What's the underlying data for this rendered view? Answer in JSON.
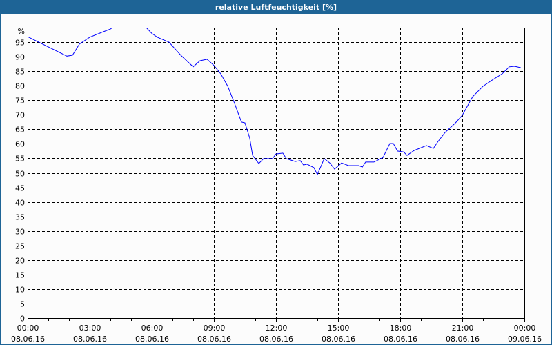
{
  "chart_data": {
    "type": "line",
    "title": "relative Luftfeuchtigkeit [%]",
    "ylabel": "%",
    "xlabel": "",
    "ylim": [
      0,
      100
    ],
    "xlim_hours": [
      0,
      24
    ],
    "grid": true,
    "y_ticks": [
      "0",
      "5",
      "10",
      "15",
      "20",
      "25",
      "30",
      "35",
      "40",
      "45",
      "50",
      "55",
      "60",
      "65",
      "70",
      "75",
      "80",
      "85",
      "90",
      "95"
    ],
    "x_ticks": [
      {
        "time": "00:00",
        "date": "08.06.16"
      },
      {
        "time": "03:00",
        "date": "08.06.16"
      },
      {
        "time": "06:00",
        "date": "08.06.16"
      },
      {
        "time": "09:00",
        "date": "08.06.16"
      },
      {
        "time": "12:00",
        "date": "08.06.16"
      },
      {
        "time": "15:00",
        "date": "08.06.16"
      },
      {
        "time": "18:00",
        "date": "08.06.16"
      },
      {
        "time": "21:00",
        "date": "08.06.16"
      },
      {
        "time": "00:00",
        "date": "09.06.16"
      }
    ],
    "series": [
      {
        "name": "relative Luftfeuchtigkeit",
        "color": "#0000ff",
        "x_hours": [
          0,
          1.9,
          2.17,
          2.5,
          3,
          3.67,
          4,
          4.2,
          5.6,
          6,
          6.27,
          6.83,
          7.4,
          8,
          8.33,
          8.67,
          9,
          9.33,
          9.67,
          10,
          10.33,
          10.5,
          10.73,
          10.87,
          11.17,
          11.4,
          11.83,
          12,
          12.33,
          12.5,
          12.93,
          13.17,
          13.33,
          13.5,
          13.83,
          14,
          14.33,
          14.6,
          14.83,
          15.17,
          15.5,
          16,
          16.17,
          16.33,
          16.73,
          17.17,
          17.5,
          17.67,
          17.87,
          18.17,
          18.33,
          18.67,
          19.27,
          19.6,
          19.83,
          20.17,
          20.67,
          21,
          21.5,
          22,
          22.5,
          22.93,
          23.27,
          23.53,
          23.83
        ],
        "values": [
          96.9,
          90.2,
          90.5,
          94.3,
          96.7,
          98.6,
          99.5,
          100.5,
          101,
          98,
          96.7,
          95,
          90.5,
          86.5,
          88.6,
          89.1,
          87,
          84.1,
          79.8,
          73.9,
          67.5,
          67.2,
          62,
          56,
          53.2,
          54.9,
          54.9,
          56.5,
          56.8,
          54.9,
          53.9,
          54.2,
          52.7,
          53,
          51.8,
          49.4,
          54.9,
          53.4,
          51.3,
          53.4,
          52.5,
          52.5,
          52,
          53.7,
          53.7,
          55.3,
          60.1,
          60.1,
          57.5,
          57.2,
          56,
          57.7,
          59.4,
          58.4,
          60.8,
          63.9,
          67.2,
          69.8,
          76.2,
          79.8,
          82.2,
          84.1,
          86.5,
          86.7,
          86.2
        ]
      }
    ],
    "colors": {
      "title_bar": "#1e6496",
      "line": "#0000ff"
    }
  }
}
